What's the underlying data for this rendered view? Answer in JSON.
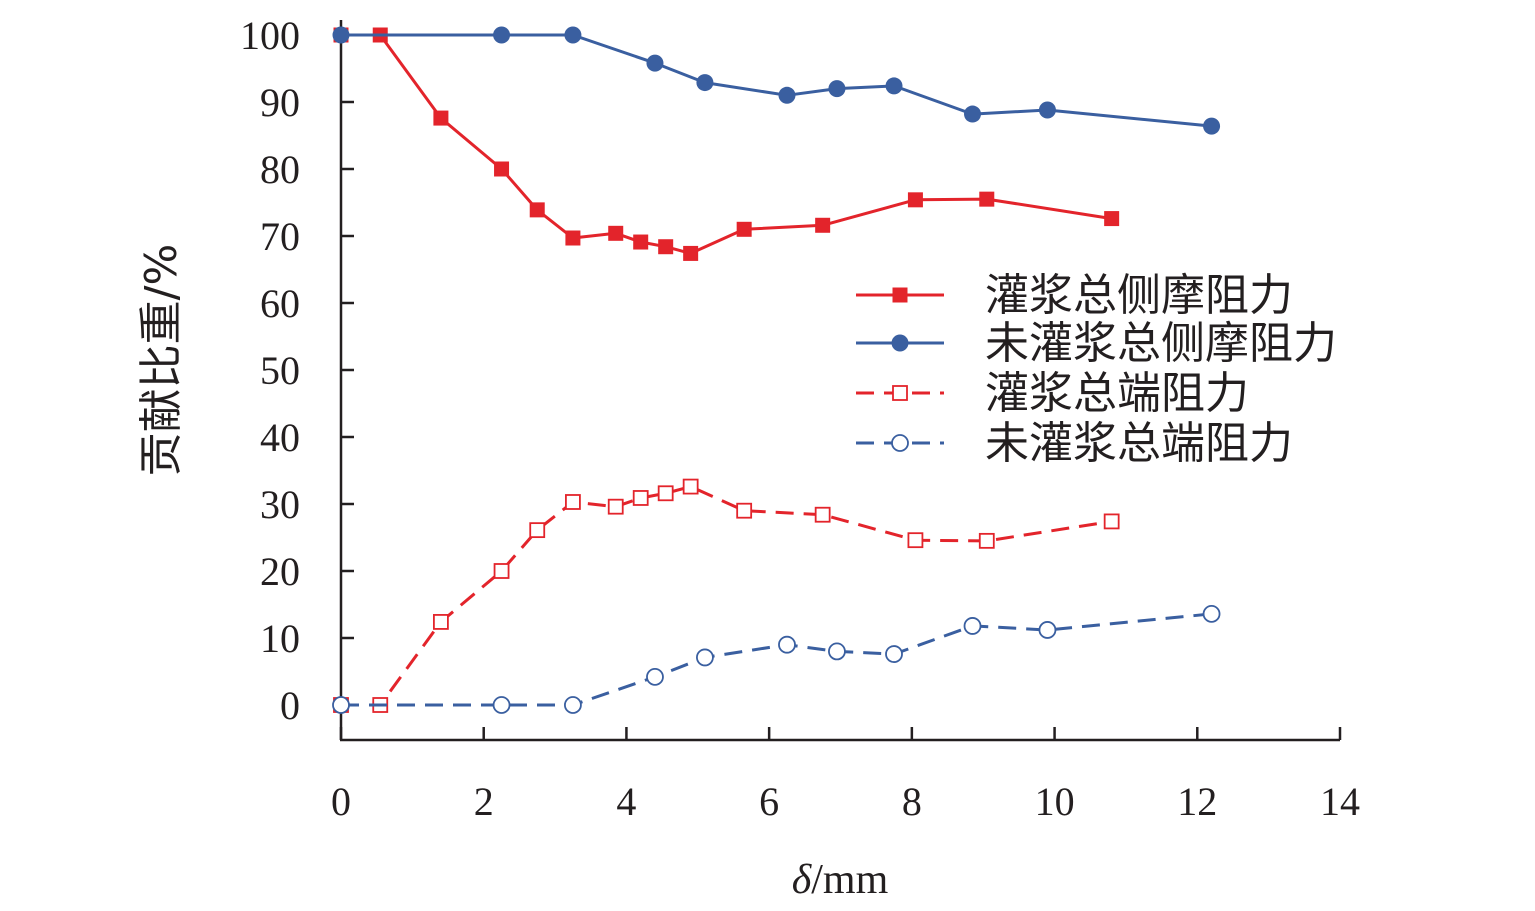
{
  "chart_data": {
    "type": "line",
    "title": "",
    "xlabel": "δ/mm",
    "xlabel_italic": "δ",
    "xlabel_unit": "/mm",
    "ylabel": "贡献比重/%",
    "xlim": [
      0,
      14
    ],
    "ylim": [
      -5,
      100
    ],
    "xticks": [
      0,
      2,
      4,
      6,
      8,
      10,
      12,
      14
    ],
    "yticks": [
      0,
      10,
      20,
      30,
      40,
      50,
      60,
      70,
      80,
      90,
      100
    ],
    "grid": false,
    "legend_position": "right-middle",
    "series": [
      {
        "name": "灌浆总侧摩阻力",
        "color": "#e3242b",
        "line": "solid",
        "marker": "filled-square",
        "x": [
          0,
          0.55,
          1.4,
          2.25,
          2.75,
          3.25,
          3.85,
          4.2,
          4.55,
          4.9,
          5.65,
          6.75,
          8.05,
          9.05,
          10.8
        ],
        "y": [
          100,
          100,
          87.6,
          80,
          73.9,
          69.7,
          70.4,
          69.1,
          68.4,
          67.4,
          71.0,
          71.6,
          75.4,
          75.5,
          72.6
        ]
      },
      {
        "name": "未灌浆总侧摩阻力",
        "color": "#3a5fa0",
        "line": "solid",
        "marker": "filled-circle",
        "x": [
          0,
          2.25,
          3.25,
          4.4,
          5.1,
          6.25,
          6.95,
          7.75,
          8.85,
          9.9,
          12.2
        ],
        "y": [
          100,
          100,
          100,
          95.8,
          92.9,
          91.0,
          92.0,
          92.4,
          88.2,
          88.8,
          86.4
        ]
      },
      {
        "name": "灌浆总端阻力",
        "color": "#e3242b",
        "line": "dashed",
        "marker": "open-square",
        "x": [
          0,
          0.55,
          1.4,
          2.25,
          2.75,
          3.25,
          3.85,
          4.2,
          4.55,
          4.9,
          5.65,
          6.75,
          8.05,
          9.05,
          10.8
        ],
        "y": [
          0,
          0,
          12.4,
          20,
          26.1,
          30.3,
          29.6,
          30.9,
          31.6,
          32.6,
          29.0,
          28.4,
          24.6,
          24.5,
          27.4
        ]
      },
      {
        "name": "未灌浆总端阻力",
        "color": "#3a5fa0",
        "line": "dashed",
        "marker": "open-circle",
        "x": [
          0,
          2.25,
          3.25,
          4.4,
          5.1,
          6.25,
          6.95,
          7.75,
          8.85,
          9.9,
          12.2
        ],
        "y": [
          0,
          0,
          0,
          4.2,
          7.1,
          9.0,
          8.0,
          7.6,
          11.8,
          11.2,
          13.6
        ]
      }
    ]
  }
}
